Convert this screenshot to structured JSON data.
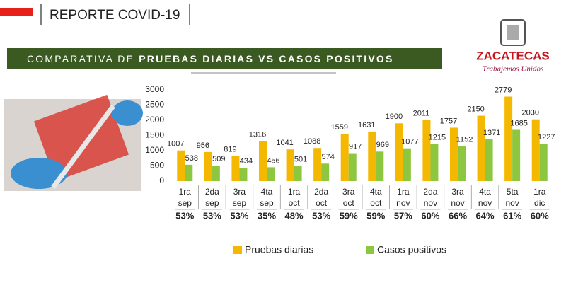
{
  "header": {
    "title": "REPORTE COVID-19"
  },
  "banner": {
    "text_regular": "COMPARATIVA DE",
    "text_bold": "PRUEBAS DIARIAS VS CASOS POSITIVOS"
  },
  "logo": {
    "name": "ZACATECAS",
    "slogan": "Trabajemos Unidos"
  },
  "chart_data": {
    "type": "bar",
    "categories": [
      [
        "1ra",
        "sep"
      ],
      [
        "2da",
        "sep"
      ],
      [
        "3ra",
        "sep"
      ],
      [
        "4ta",
        "sep"
      ],
      [
        "1ra",
        "oct"
      ],
      [
        "2da",
        "oct"
      ],
      [
        "3ra",
        "oct"
      ],
      [
        "4ta",
        "oct"
      ],
      [
        "1ra",
        "nov"
      ],
      [
        "2da",
        "nov"
      ],
      [
        "3ra",
        "nov"
      ],
      [
        "4ta",
        "nov"
      ],
      [
        "5ta",
        "nov"
      ],
      [
        "1ra",
        "dic"
      ]
    ],
    "series": [
      {
        "name": "Pruebas diarias",
        "color": "#f5b800",
        "values": [
          1007,
          956,
          819,
          1316,
          1041,
          1088,
          1559,
          1631,
          1900,
          2011,
          1757,
          2150,
          2779,
          2030
        ]
      },
      {
        "name": "Casos positivos",
        "color": "#8dc63f",
        "values": [
          538,
          509,
          434,
          456,
          501,
          574,
          917,
          969,
          1077,
          1215,
          1152,
          1371,
          1685,
          1227
        ]
      }
    ],
    "percent_labels": [
      "53%",
      "53%",
      "53%",
      "35%",
      "48%",
      "53%",
      "59%",
      "59%",
      "57%",
      "60%",
      "66%",
      "64%",
      "61%",
      "60%"
    ],
    "ylim": [
      0,
      3000
    ],
    "yticks": [
      0,
      500,
      1000,
      1500,
      2000,
      2500,
      3000
    ],
    "grid": false
  }
}
